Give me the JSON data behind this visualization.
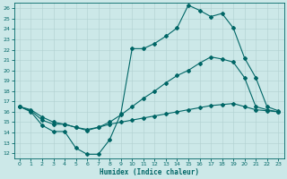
{
  "xlabel": "Humidex (Indice chaleur)",
  "background_color": "#cce8e8",
  "grid_color": "#b0d0d0",
  "line_color": "#006666",
  "xlim": [
    -0.5,
    23.5
  ],
  "ylim": [
    11.5,
    26.5
  ],
  "xticks": [
    0,
    1,
    2,
    3,
    4,
    5,
    6,
    7,
    8,
    9,
    10,
    11,
    12,
    13,
    14,
    15,
    16,
    17,
    18,
    19,
    20,
    21,
    22,
    23
  ],
  "yticks": [
    12,
    13,
    14,
    15,
    16,
    17,
    18,
    19,
    20,
    21,
    22,
    23,
    24,
    25,
    26
  ],
  "line1_x": [
    0,
    1,
    2,
    3,
    4,
    5,
    6,
    7,
    8,
    9,
    10,
    11,
    12,
    13,
    14,
    15,
    16,
    17,
    18,
    19,
    20,
    21,
    22,
    23
  ],
  "line1_y": [
    16.5,
    16.0,
    14.7,
    14.1,
    14.1,
    12.5,
    11.9,
    11.9,
    13.3,
    15.8,
    22.1,
    22.1,
    22.6,
    23.3,
    24.1,
    26.3,
    25.8,
    25.2,
    25.5,
    24.1,
    21.2,
    19.3,
    16.5,
    16.1
  ],
  "line2_x": [
    0,
    1,
    2,
    3,
    4,
    5,
    6,
    7,
    8,
    9,
    10,
    11,
    12,
    13,
    14,
    15,
    16,
    17,
    18,
    19,
    20,
    21,
    22,
    23
  ],
  "line2_y": [
    16.5,
    16.2,
    15.5,
    15.0,
    14.8,
    14.5,
    14.2,
    14.5,
    15.0,
    15.7,
    16.5,
    17.3,
    18.0,
    18.8,
    19.5,
    20.0,
    20.7,
    21.3,
    21.1,
    20.8,
    19.3,
    16.5,
    16.2,
    16.0
  ],
  "line3_x": [
    0,
    1,
    2,
    3,
    4,
    5,
    6,
    7,
    8,
    9,
    10,
    11,
    12,
    13,
    14,
    15,
    16,
    17,
    18,
    19,
    20,
    21,
    22,
    23
  ],
  "line3_y": [
    16.5,
    16.1,
    15.2,
    14.8,
    14.8,
    14.5,
    14.3,
    14.5,
    14.8,
    15.0,
    15.2,
    15.4,
    15.6,
    15.8,
    16.0,
    16.2,
    16.4,
    16.6,
    16.7,
    16.8,
    16.5,
    16.2,
    16.1,
    16.0
  ],
  "marker": "D",
  "marker_size": 2.0,
  "linewidth": 0.8
}
